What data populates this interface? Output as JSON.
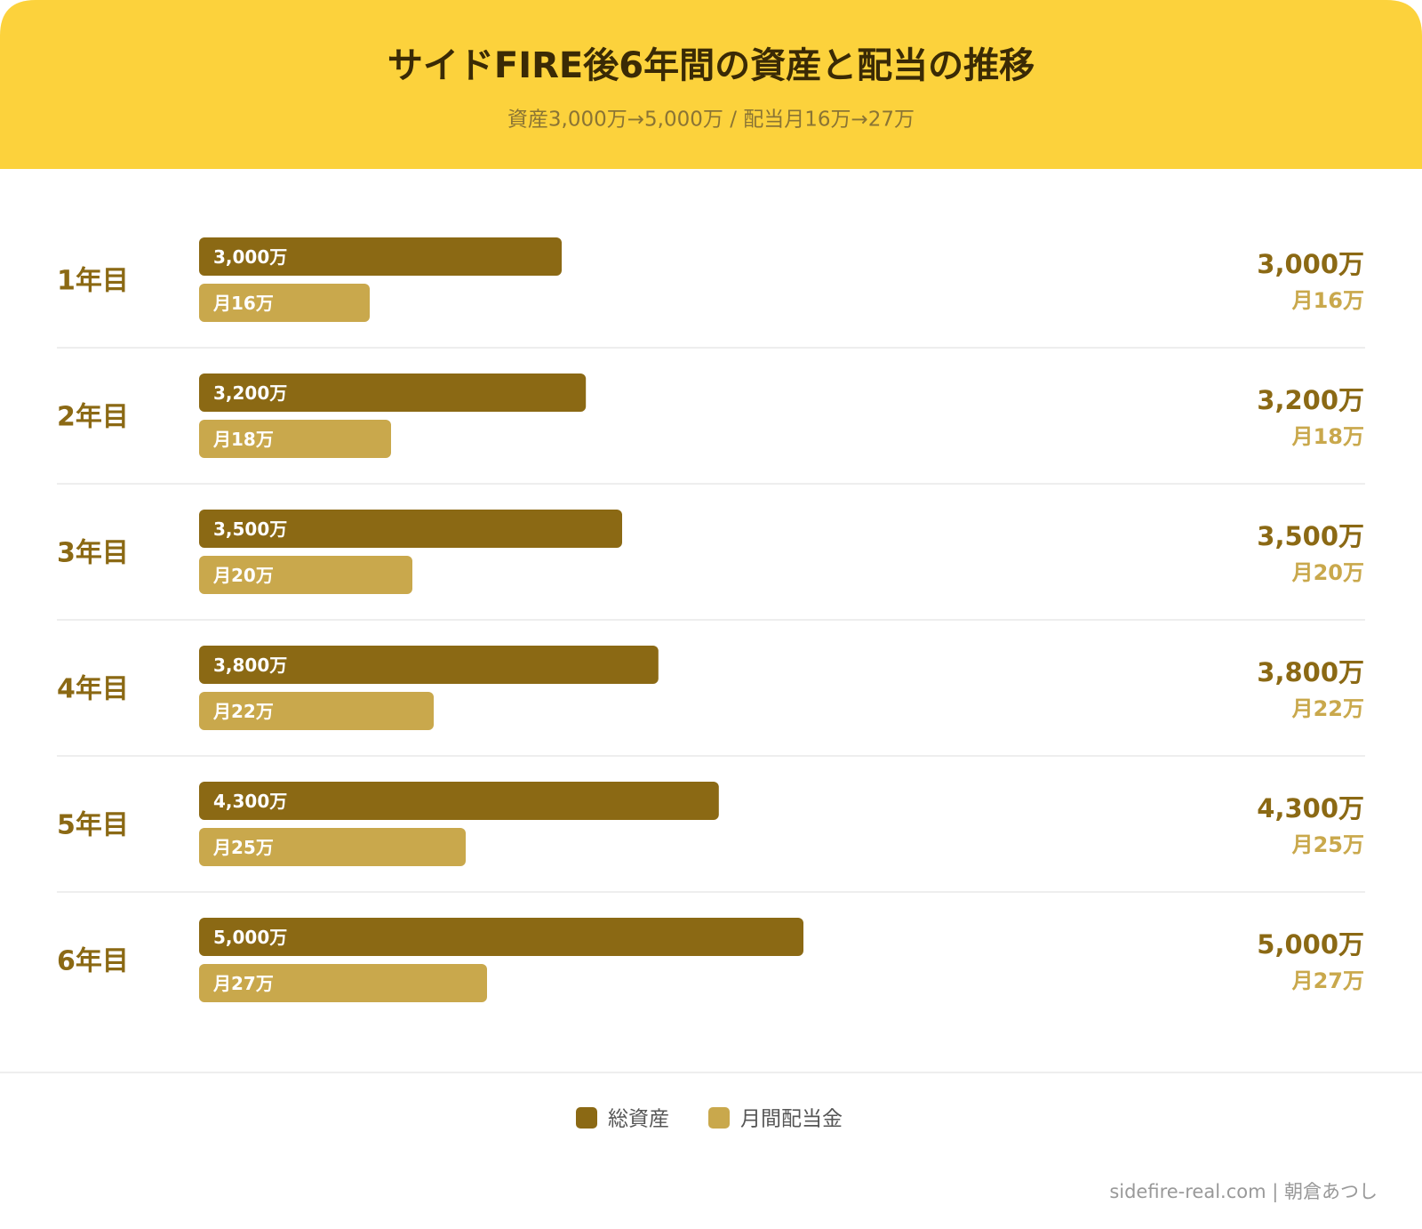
{
  "chart_data": {
    "type": "bar",
    "orientation": "horizontal",
    "title": "サイドFIRE後6年間の資産と配当の推移",
    "subtitle": "資産3,000万→5,000万 / 配当月16万→27万",
    "categories": [
      "1年目",
      "2年目",
      "3年目",
      "4年目",
      "5年目",
      "6年目"
    ],
    "series": [
      {
        "name": "総資産",
        "color": "#8B6914",
        "values": [
          3000,
          3200,
          3500,
          3800,
          4300,
          5000
        ],
        "value_labels": [
          "3,000万",
          "3,200万",
          "3,500万",
          "3,800万",
          "4,300万",
          "5,000万"
        ]
      },
      {
        "name": "月間配当金",
        "color": "#C9A84C",
        "values": [
          16,
          18,
          20,
          22,
          25,
          27
        ],
        "value_labels": [
          "月16万",
          "月18万",
          "月20万",
          "月22万",
          "月25万",
          "月27万"
        ]
      }
    ]
  },
  "footer": "sidefire-real.com | 朝倉あつし"
}
